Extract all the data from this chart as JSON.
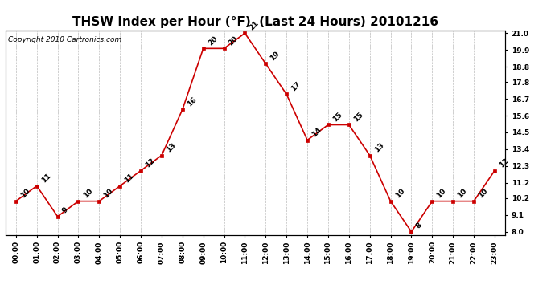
{
  "title": "THSW Index per Hour (°F)  (Last 24 Hours) 20101216",
  "copyright": "Copyright 2010 Cartronics.com",
  "hours": [
    "00:00",
    "01:00",
    "02:00",
    "03:00",
    "04:00",
    "05:00",
    "06:00",
    "07:00",
    "08:00",
    "09:00",
    "10:00",
    "11:00",
    "12:00",
    "13:00",
    "14:00",
    "15:00",
    "16:00",
    "17:00",
    "18:00",
    "19:00",
    "20:00",
    "21:00",
    "22:00",
    "23:00"
  ],
  "values": [
    10,
    11,
    9,
    10,
    10,
    11,
    12,
    13,
    16,
    20,
    20,
    21,
    19,
    17,
    14,
    15,
    15,
    13,
    10,
    8,
    10,
    10,
    10,
    12
  ],
  "line_color": "#cc0000",
  "marker_color": "#cc0000",
  "background_color": "#ffffff",
  "grid_color": "#bbbbbb",
  "ylim": [
    7.8,
    21.2
  ],
  "yticks_right": [
    8.0,
    9.1,
    10.2,
    11.2,
    12.3,
    13.4,
    14.5,
    15.6,
    16.7,
    17.8,
    18.8,
    19.9,
    21.0
  ],
  "title_fontsize": 11,
  "label_fontsize": 6.5,
  "annotation_fontsize": 6.5,
  "copyright_fontsize": 6.5,
  "figwidth": 6.9,
  "figheight": 3.75,
  "dpi": 100
}
